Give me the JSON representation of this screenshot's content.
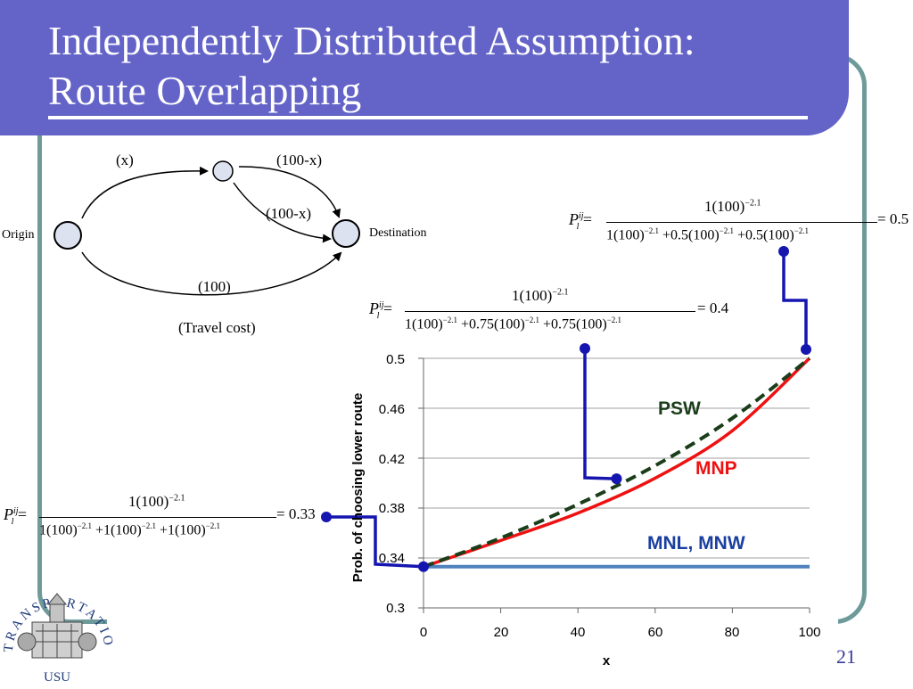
{
  "slide": {
    "title_line1": "Independently Distributed Assumption:",
    "title_line2": "Route Overlapping",
    "page_number": "21"
  },
  "network": {
    "label_x": "(x)",
    "label_100_minus_x_top": "(100-x)",
    "label_100_minus_x_mid": "(100-x)",
    "label_100": "(100)",
    "origin": "Origin",
    "destination": "Destination",
    "caption": "(Travel cost)"
  },
  "formulas": {
    "f1": {
      "lhs": "P",
      "sup": "ij",
      "sub": "l",
      "numerator": "1(100)",
      "num_exp": "−2.1",
      "denominator": [
        "1(100)",
        "+0.5(100)",
        "+0.5(100)"
      ],
      "den_exp": "−2.1",
      "result": "= 0.5"
    },
    "f2": {
      "lhs": "P",
      "sup": "ij",
      "sub": "l",
      "numerator": "1(100)",
      "num_exp": "−2.1",
      "denominator": [
        "1(100)",
        "+0.75(100)",
        "+0.75(100)"
      ],
      "den_exp": "−2.1",
      "result": "= 0.4"
    },
    "f3": {
      "lhs": "P",
      "sup": "ij",
      "sub": "l",
      "numerator": "1(100)",
      "num_exp": "−2.1",
      "denominator": [
        "1(100)",
        "+1(100)",
        "+1(100)"
      ],
      "den_exp": "−2.1",
      "result": "= 0.33"
    }
  },
  "logo": {
    "arc_text": "TRANSPORTATION",
    "org": "USU"
  },
  "colors": {
    "title_bg": "#6464c8",
    "frame": "#6e9a9a",
    "psw": "#1a3d1a",
    "mnp": "#ee1111",
    "mnl": "#4f81bd",
    "callout": "#1515b0"
  },
  "chart_data": {
    "type": "line",
    "xlabel": "x",
    "ylabel": "Prob. of choosing lower route",
    "xlim": [
      0,
      100
    ],
    "ylim": [
      0.3,
      0.5
    ],
    "xticks": [
      "0",
      "20",
      "40",
      "60",
      "80",
      "100"
    ],
    "yticks": [
      "0.3",
      "0.34",
      "0.38",
      "0.42",
      "0.46",
      "0.5"
    ],
    "series": [
      {
        "name": "MNL, MNW",
        "x": [
          0,
          20,
          40,
          60,
          80,
          100
        ],
        "values": [
          0.333,
          0.333,
          0.333,
          0.333,
          0.333,
          0.333
        ]
      },
      {
        "name": "MNP",
        "x": [
          0,
          20,
          40,
          60,
          80,
          100
        ],
        "values": [
          0.333,
          0.354,
          0.376,
          0.404,
          0.442,
          0.5
        ]
      },
      {
        "name": "PSW",
        "x": [
          0,
          20,
          40,
          60,
          80,
          100
        ],
        "values": [
          0.333,
          0.356,
          0.383,
          0.414,
          0.452,
          0.5
        ]
      }
    ],
    "callouts": [
      {
        "x": 0,
        "y": 0.333,
        "label": "= 0.33"
      },
      {
        "x": 50,
        "y": 0.4035,
        "label": "= 0.4"
      },
      {
        "x": 100,
        "y": 0.5,
        "label": "= 0.5"
      }
    ]
  }
}
